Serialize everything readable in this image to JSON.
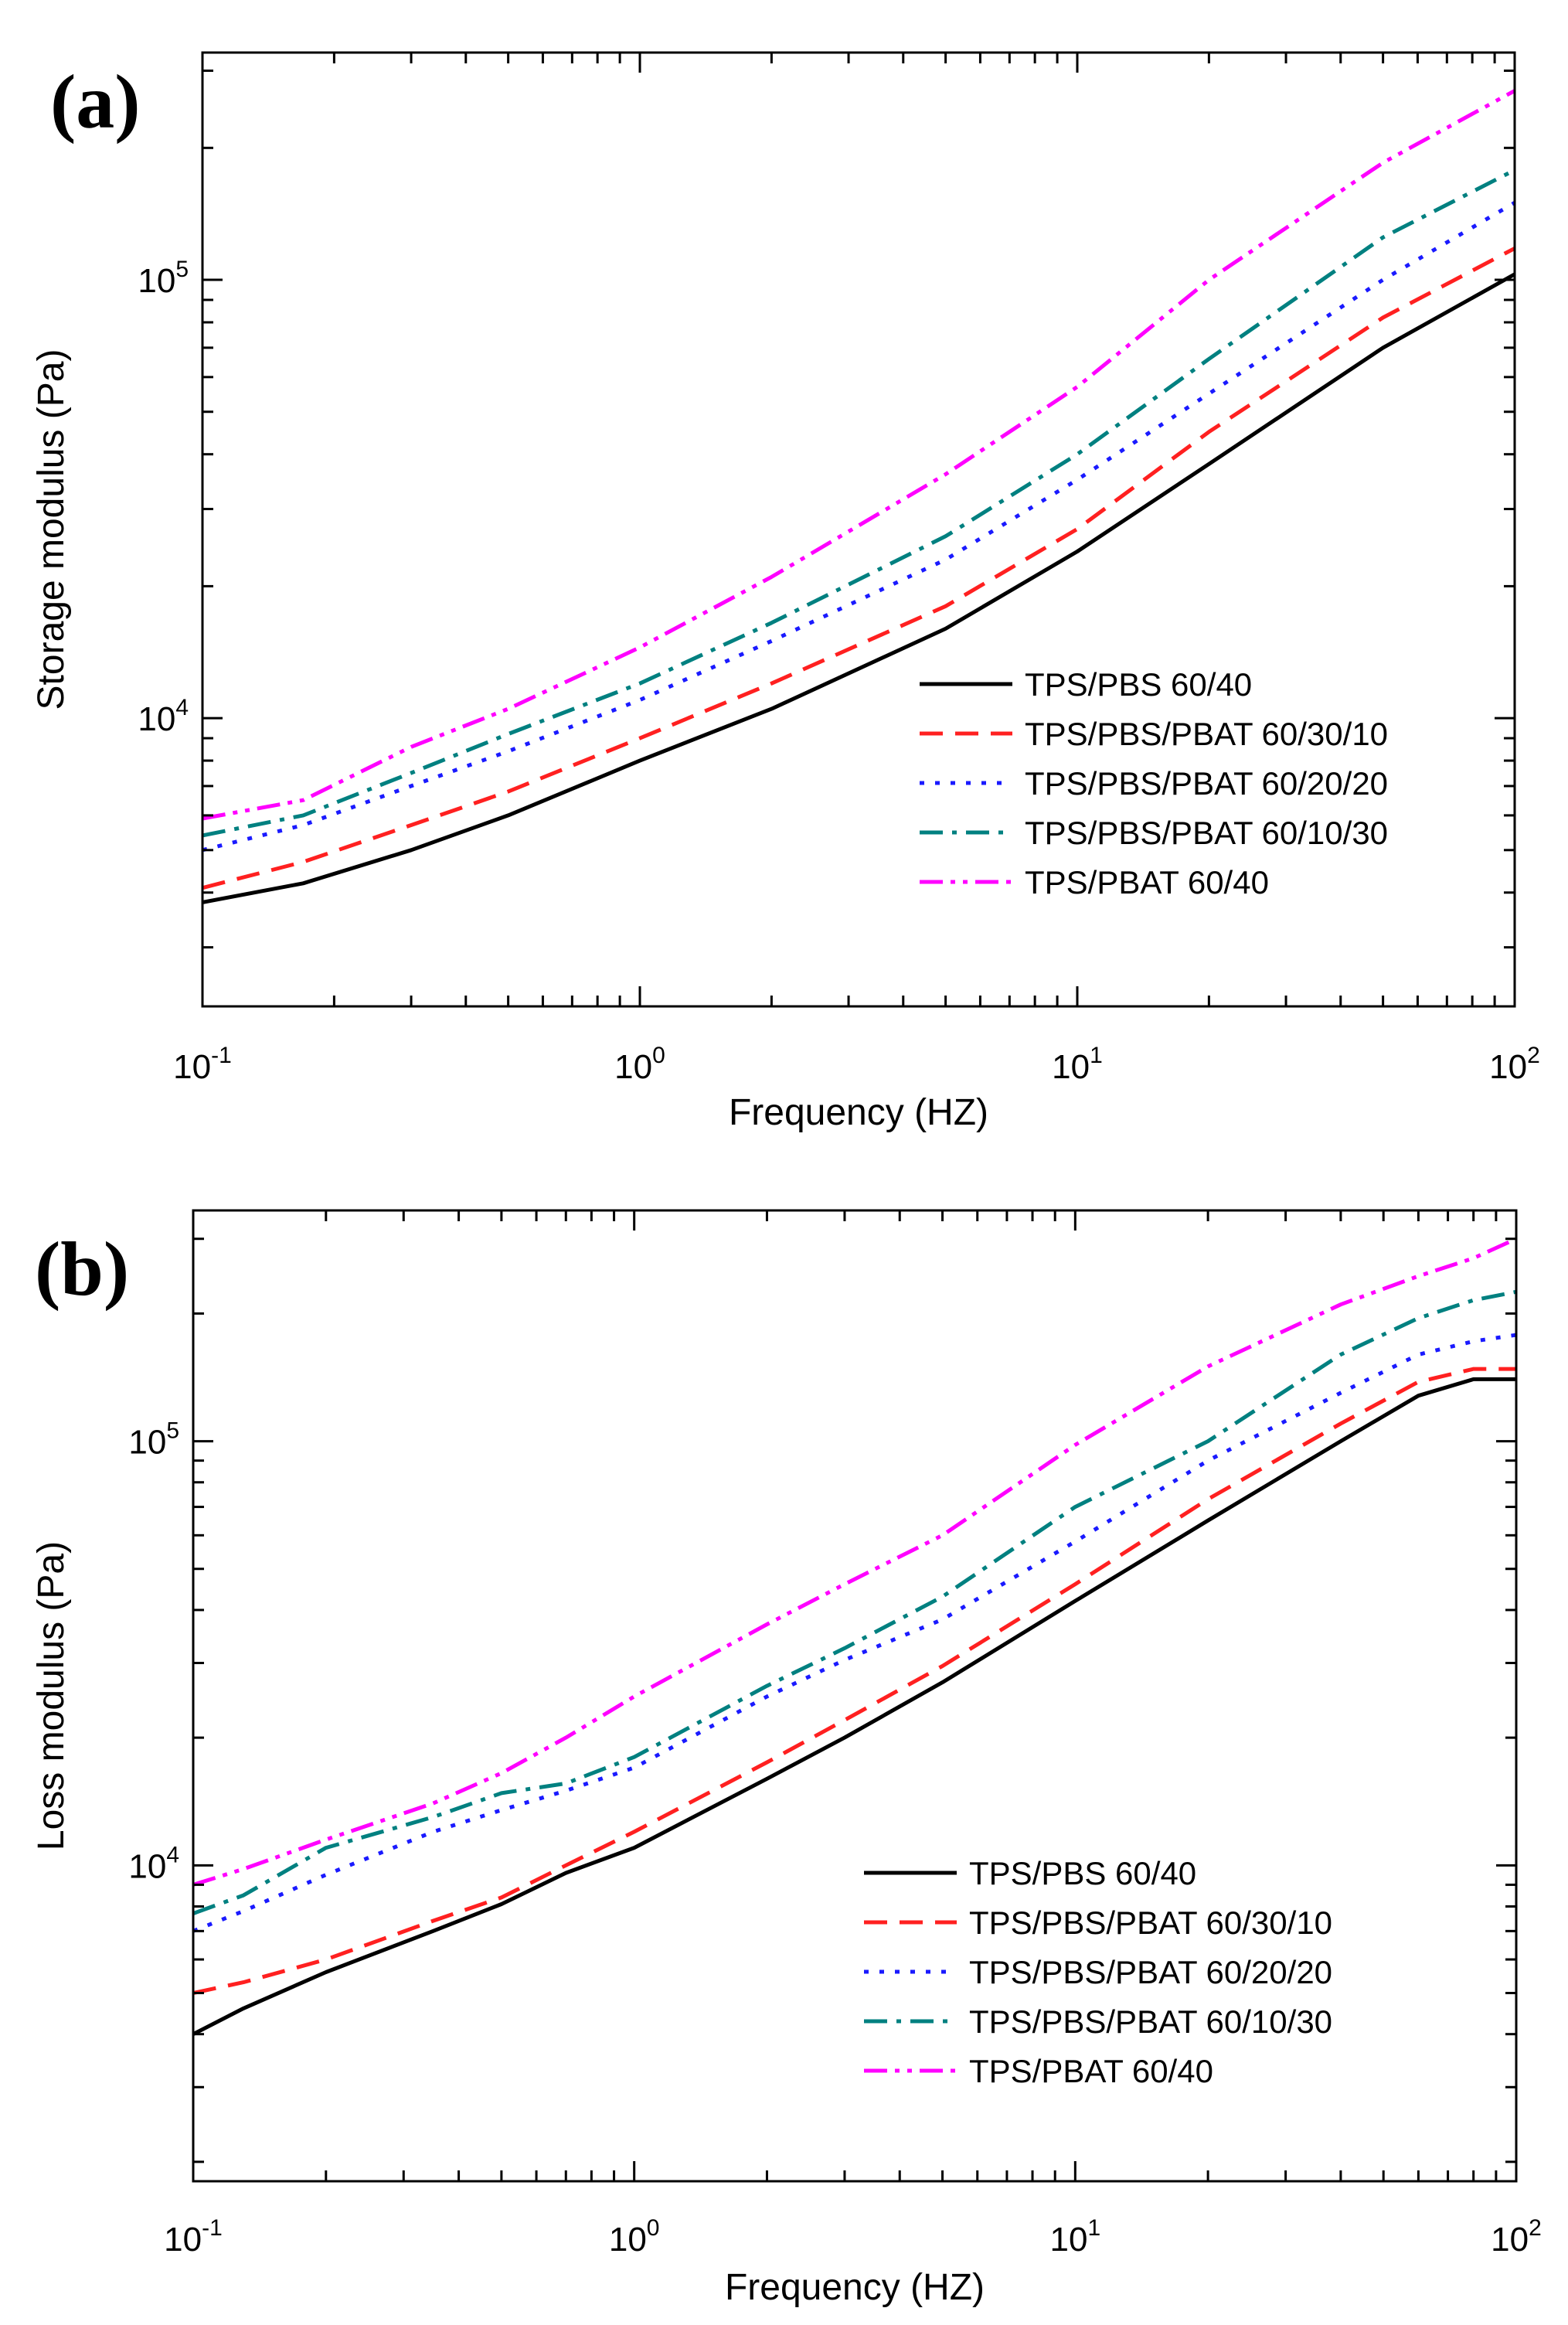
{
  "chart_data": [
    {
      "type": "line",
      "panel_label": "(a)",
      "xlabel": "Frequency (HZ)",
      "ylabel": "Storage modulus (Pa)",
      "xscale": "log",
      "yscale": "log",
      "xlim": [
        0.1,
        100
      ],
      "ylim": [
        2200,
        330000
      ],
      "x_ticks": [
        {
          "base": "10",
          "exp": "-1",
          "value": 0.1
        },
        {
          "base": "10",
          "exp": "0",
          "value": 1
        },
        {
          "base": "10",
          "exp": "1",
          "value": 10
        },
        {
          "base": "10",
          "exp": "2",
          "value": 100
        }
      ],
      "y_ticks": [
        {
          "base": "10",
          "exp": "4",
          "value": 10000
        },
        {
          "base": "10",
          "exp": "5",
          "value": 100000
        }
      ],
      "legend_position": "center-right",
      "x": [
        0.1,
        0.17,
        0.3,
        0.5,
        1,
        2,
        5,
        10,
        20,
        50,
        100
      ],
      "series": [
        {
          "name": "TPS/PBS 60/40",
          "color": "#000000",
          "dash": "solid",
          "values": [
            3800,
            4200,
            5000,
            6000,
            8000,
            10500,
            16000,
            24000,
            38000,
            70000,
            103000
          ]
        },
        {
          "name": "TPS/PBS/PBAT 60/30/10",
          "color": "#ff2020",
          "dash": "dash",
          "values": [
            4100,
            4700,
            5700,
            6800,
            9000,
            12000,
            18000,
            27000,
            45000,
            82000,
            118000
          ]
        },
        {
          "name": "TPS/PBS/PBAT 60/20/20",
          "color": "#1a1aff",
          "dash": "dot",
          "values": [
            5000,
            5700,
            7000,
            8400,
            11000,
            15000,
            23000,
            35000,
            55000,
            100000,
            150000
          ]
        },
        {
          "name": "TPS/PBS/PBAT 60/10/30",
          "color": "#008080",
          "dash": "dashdot",
          "values": [
            5400,
            6000,
            7500,
            9200,
            12000,
            16500,
            26000,
            40000,
            66000,
            125000,
            178000
          ]
        },
        {
          "name": "TPS/PBAT 60/40",
          "color": "#ff00ff",
          "dash": "dashdotdot",
          "values": [
            5900,
            6500,
            8600,
            10500,
            14500,
            21000,
            36000,
            57000,
            100000,
            185000,
            270000
          ]
        }
      ]
    },
    {
      "type": "line",
      "panel_label": "(b)",
      "xlabel": "Frequency (HZ)",
      "ylabel": "Loss modulus (Pa)",
      "xscale": "log",
      "yscale": "log",
      "xlim": [
        0.1,
        100
      ],
      "ylim": [
        1800,
        350000
      ],
      "x_ticks": [
        {
          "base": "10",
          "exp": "-1",
          "value": 0.1
        },
        {
          "base": "10",
          "exp": "0",
          "value": 1
        },
        {
          "base": "10",
          "exp": "1",
          "value": 10
        },
        {
          "base": "10",
          "exp": "2",
          "value": 100
        }
      ],
      "y_ticks": [
        {
          "base": "10",
          "exp": "4",
          "value": 10000
        },
        {
          "base": "10",
          "exp": "5",
          "value": 100000
        }
      ],
      "legend_position": "bottom-right",
      "x": [
        0.1,
        0.13,
        0.2,
        0.35,
        0.5,
        0.7,
        1,
        2,
        3,
        5,
        10,
        20,
        40,
        60,
        80,
        100
      ],
      "series": [
        {
          "name": "TPS/PBS 60/40",
          "color": "#000000",
          "dash": "solid",
          "values": [
            4000,
            4600,
            5600,
            7000,
            8100,
            9600,
            11000,
            16000,
            20000,
            27000,
            42000,
            65000,
            100000,
            128000,
            140000,
            140000
          ]
        },
        {
          "name": "TPS/PBS/PBAT 60/30/10",
          "color": "#ff2020",
          "dash": "dash",
          "values": [
            5000,
            5300,
            6000,
            7400,
            8400,
            10000,
            12000,
            17500,
            22000,
            29500,
            46000,
            73000,
            110000,
            138000,
            148000,
            148000
          ]
        },
        {
          "name": "TPS/PBS/PBAT 60/20/20",
          "color": "#1a1aff",
          "dash": "dot",
          "values": [
            7000,
            7800,
            9500,
            12000,
            13500,
            15000,
            17000,
            25000,
            30500,
            38000,
            58000,
            90000,
            130000,
            160000,
            172000,
            178000
          ]
        },
        {
          "name": "TPS/PBS/PBAT 60/10/30",
          "color": "#008080",
          "dash": "dashdot",
          "values": [
            7700,
            8500,
            11000,
            13000,
            14800,
            15600,
            18000,
            26500,
            32500,
            43000,
            70000,
            100000,
            160000,
            195000,
            215000,
            225000
          ]
        },
        {
          "name": "TPS/PBAT 60/40",
          "color": "#ff00ff",
          "dash": "dashdotdot",
          "values": [
            9000,
            9800,
            11500,
            14000,
            16500,
            20000,
            25000,
            37000,
            46000,
            60000,
            98000,
            150000,
            210000,
            245000,
            270000,
            300000
          ]
        }
      ]
    }
  ]
}
